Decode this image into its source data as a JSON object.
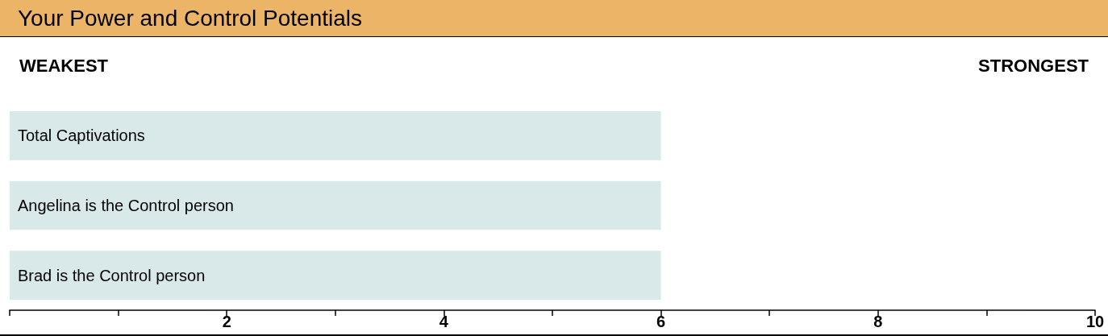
{
  "chart_data": {
    "type": "bar",
    "orientation": "horizontal",
    "title": "Your Power and Control Potentials",
    "annotations": [
      "WEAKEST",
      "STRONGEST"
    ],
    "categories": [
      "Total Captivations",
      "Angelina is the Control person",
      "Brad is the Control person"
    ],
    "values": [
      6,
      6,
      6
    ],
    "color": "#d9e8e8",
    "xlim": [
      0,
      10
    ],
    "xticks": [
      {
        "value": 0,
        "label": null
      },
      {
        "value": 1,
        "label": null
      },
      2,
      {
        "value": 3,
        "label": null
      },
      4,
      {
        "value": 5,
        "label": null
      },
      6,
      {
        "value": 7,
        "label": null
      },
      8,
      {
        "value": 9,
        "label": null
      },
      10
    ]
  }
}
